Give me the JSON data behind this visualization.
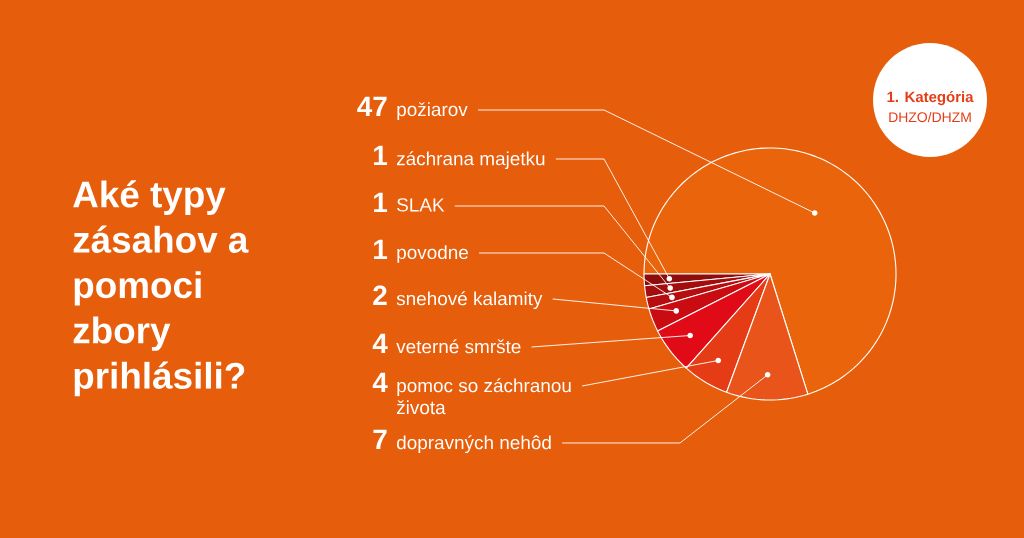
{
  "chart_data": {
    "type": "pie",
    "title": "Aké typy zásahov a pomoci zbory prihlásili?",
    "categories": [
      "požiarov",
      "záchrana majetku",
      "SLAK",
      "povodne",
      "snehové kalamity",
      "veterné smršte",
      "pomoc so záchranou života",
      "dopravných nehôd"
    ],
    "values": [
      47,
      1,
      1,
      1,
      2,
      4,
      4,
      7
    ],
    "colors": [
      "#ea640b",
      "#8e0c0c",
      "#a20d0e",
      "#b60d10",
      "#c90c12",
      "#e10a17",
      "#e63c15",
      "#e8541a"
    ],
    "data_labels": true,
    "legend": false,
    "annotations": [
      "1. Kategória",
      "DHZO/DHZM"
    ]
  }
}
